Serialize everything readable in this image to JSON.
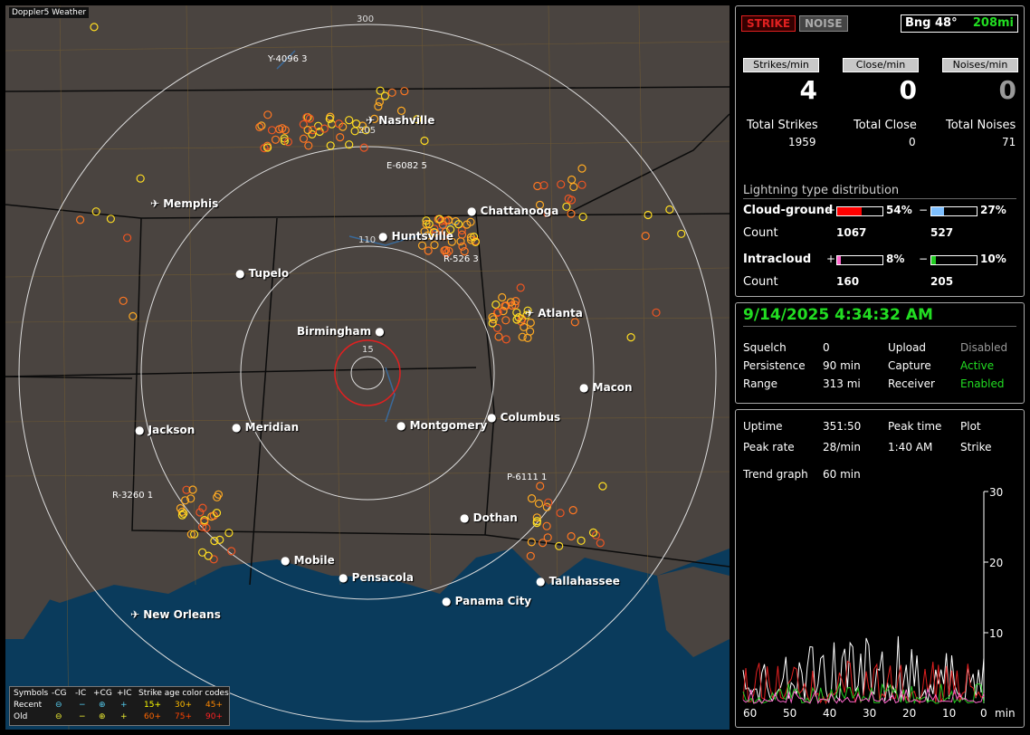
{
  "map": {
    "title": "Doppler5 Weather",
    "ring_labels": [
      "300",
      "205",
      "110",
      "15"
    ],
    "cities": [
      {
        "name": "Nashville",
        "icon": "airport"
      },
      {
        "name": "Memphis",
        "icon": "airport"
      },
      {
        "name": "Chattanooga",
        "icon": "dot"
      },
      {
        "name": "Huntsville",
        "icon": "dot"
      },
      {
        "name": "Tupelo",
        "icon": "dot"
      },
      {
        "name": "Atlanta",
        "icon": "airport"
      },
      {
        "name": "Birmingham",
        "icon": "dot"
      },
      {
        "name": "Macon",
        "icon": "dot"
      },
      {
        "name": "Jackson",
        "icon": "dot"
      },
      {
        "name": "Meridian",
        "icon": "dot"
      },
      {
        "name": "Montgomery",
        "icon": "dot"
      },
      {
        "name": "Columbus",
        "icon": "dot"
      },
      {
        "name": "Dothan",
        "icon": "dot"
      },
      {
        "name": "Mobile",
        "icon": "dot"
      },
      {
        "name": "Pensacola",
        "icon": "dot"
      },
      {
        "name": "Tallahassee",
        "icon": "dot"
      },
      {
        "name": "Panama City",
        "icon": "dot"
      },
      {
        "name": "New Orleans",
        "icon": "airport"
      }
    ],
    "sensors": [
      "Y-4096 3",
      "E-6082 5",
      "R-526 3",
      "R-3260 1",
      "P-6111 1"
    ],
    "legend": {
      "row_header": "Symbols",
      "columns": [
        "-CG",
        "-IC",
        "+CG",
        "+IC"
      ],
      "rows": [
        "Recent",
        "Old"
      ],
      "age_title": "Strike age color codes",
      "ages_recent": [
        "15+",
        "30+",
        "45+"
      ],
      "ages_old": [
        "60+",
        "75+",
        "90+"
      ]
    }
  },
  "status": {
    "strike_button": "STRIKE",
    "noise_button": "NOISE",
    "bearing": "Bng 48°",
    "distance": "208mi"
  },
  "rates": {
    "strikes_label": "Strikes/min",
    "strikes_value": "4",
    "close_label": "Close/min",
    "close_value": "0",
    "noises_label": "Noises/min",
    "noises_value": "0"
  },
  "totals": {
    "strikes_label": "Total Strikes",
    "strikes_value": "1959",
    "close_label": "Total Close",
    "close_value": "0",
    "noises_label": "Total Noises",
    "noises_value": "71"
  },
  "distribution": {
    "title": "Lightning type distribution",
    "cg_label": "Cloud-ground",
    "cg_plus_pct": "54%",
    "cg_minus_pct": "27%",
    "cg_plus_fraction": 0.54,
    "cg_minus_fraction": 0.27,
    "count_label": "Count",
    "cg_plus_count": "1067",
    "cg_minus_count": "527",
    "ic_label": "Intracloud",
    "ic_plus_pct": "8%",
    "ic_minus_pct": "10%",
    "ic_plus_fraction": 0.08,
    "ic_minus_fraction": 0.1,
    "ic_plus_count": "160",
    "ic_minus_count": "205",
    "plus": "+",
    "minus": "−"
  },
  "info": {
    "datetime": "9/14/2025 4:34:32 AM",
    "squelch_label": "Squelch",
    "squelch_value": "0",
    "persistence_label": "Persistence",
    "persistence_value": "90 min",
    "range_label": "Range",
    "range_value": "313 mi",
    "upload_label": "Upload",
    "upload_value": "Disabled",
    "capture_label": "Capture",
    "capture_value": "Active",
    "receiver_label": "Receiver",
    "receiver_value": "Enabled"
  },
  "trend": {
    "uptime_label": "Uptime",
    "uptime_value": "351:50",
    "peak_time_label": "Peak time",
    "peak_time_value": "1:40 AM",
    "plot_label": "Plot",
    "plot_value": "Strike",
    "peak_rate_label": "Peak rate",
    "peak_rate_value": "28/min",
    "trend_label": "Trend graph",
    "trend_value": "60 min",
    "y_ticks": [
      "30",
      "20",
      "10"
    ],
    "x_ticks": [
      "60",
      "50",
      "40",
      "30",
      "20",
      "10",
      "0"
    ],
    "x_unit": "min"
  },
  "colors": {
    "accent_green": "#22dd22",
    "strike_red": "#e02020",
    "cg_plus": "#ff0000",
    "cg_minus": "#7fc0ff",
    "ic_plus": "#ff66cc",
    "ic_minus": "#22cc22"
  }
}
